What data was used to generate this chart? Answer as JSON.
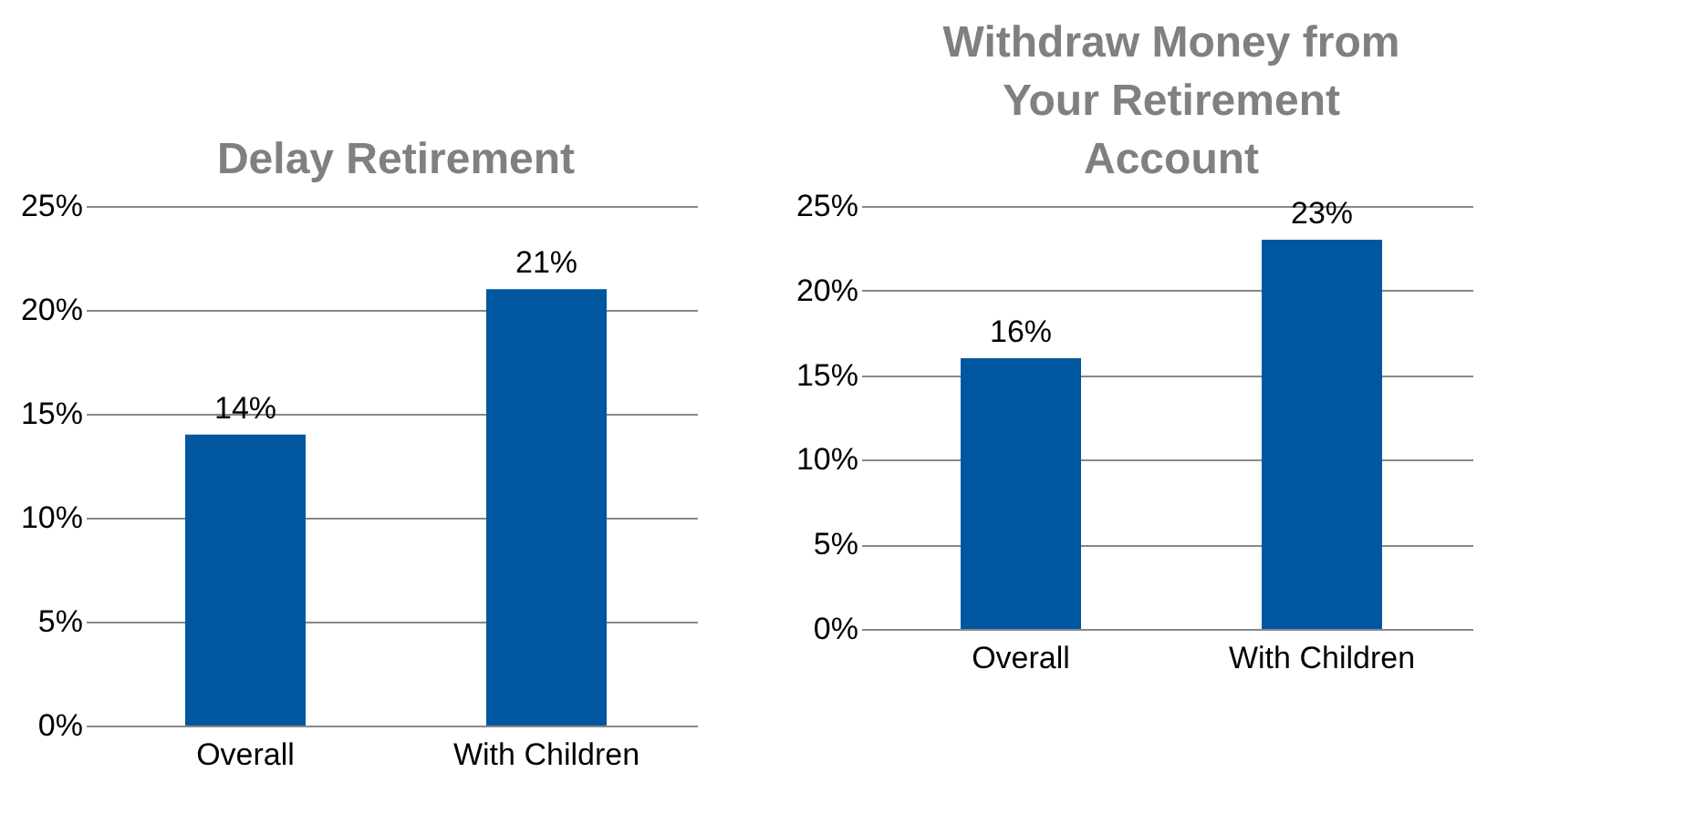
{
  "chart_data": [
    {
      "type": "bar",
      "title": "Delay Retirement",
      "categories": [
        "Overall",
        "With Children"
      ],
      "values": [
        14,
        21
      ],
      "color": "#0057a0",
      "value_labels": [
        "14%",
        "21%"
      ],
      "ylim": [
        0,
        25
      ],
      "yticks": [
        {
          "value": 0,
          "label": "0%"
        },
        {
          "value": 5,
          "label": "5%"
        },
        {
          "value": 10,
          "label": "10%"
        },
        {
          "value": 15,
          "label": "15%"
        },
        {
          "value": 20,
          "label": "20%"
        },
        {
          "value": 25,
          "label": "25%"
        }
      ],
      "grid": "y"
    },
    {
      "type": "bar",
      "title": "Withdraw Money from Your Retirement Account",
      "categories": [
        "Overall",
        "With Children"
      ],
      "values": [
        16,
        23
      ],
      "color": "#0057a0",
      "value_labels": [
        "16%",
        "23%"
      ],
      "ylim": [
        0,
        25
      ],
      "yticks": [
        {
          "value": 0,
          "label": "0%"
        },
        {
          "value": 5,
          "label": "5%"
        },
        {
          "value": 10,
          "label": "10%"
        },
        {
          "value": 15,
          "label": "15%"
        },
        {
          "value": 20,
          "label": "20%"
        },
        {
          "value": 25,
          "label": "25%"
        }
      ],
      "grid": "y"
    }
  ]
}
